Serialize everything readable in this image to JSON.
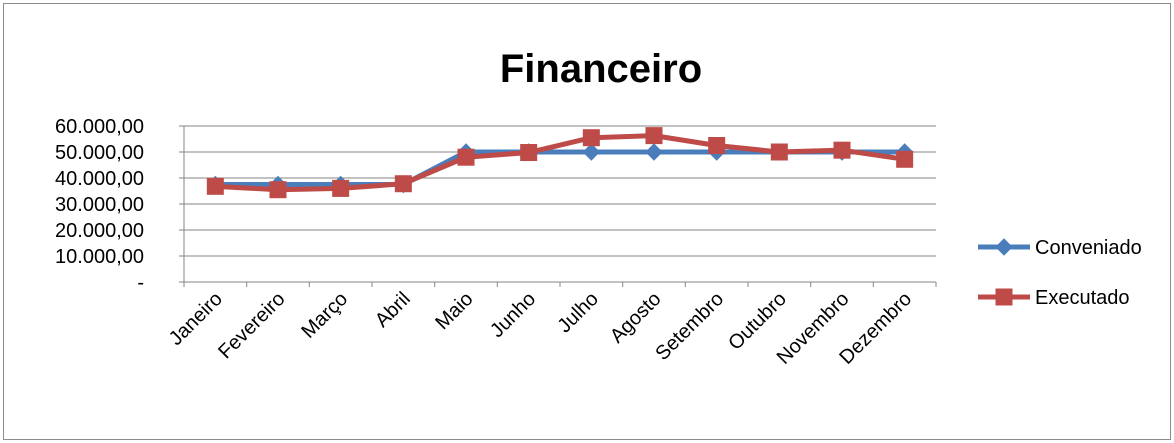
{
  "chart_data": {
    "type": "line",
    "title": "Financeiro",
    "xlabel": "",
    "ylabel": "",
    "categories": [
      "Janeiro",
      "Fevereiro",
      "Março",
      "Abril",
      "Maio",
      "Junho",
      "Julho",
      "Agosto",
      "Setembro",
      "Outubro",
      "Novembro",
      "Dezembro"
    ],
    "ylim": [
      0,
      60000
    ],
    "y_ticks": [
      0,
      10000,
      20000,
      30000,
      40000,
      50000,
      60000
    ],
    "y_tick_labels": [
      "-",
      "10.000,00",
      "20.000,00",
      "30.000,00",
      "40.000,00",
      "50.000,00",
      "60.000,00"
    ],
    "grid": true,
    "legend_position": "right",
    "series": [
      {
        "name": "Conveniado",
        "color": "#4a7ebb",
        "marker": "diamond",
        "values": [
          37500,
          37500,
          37500,
          37500,
          50000,
          50000,
          50000,
          50000,
          50000,
          50000,
          50000,
          50000
        ]
      },
      {
        "name": "Executado",
        "color": "#be4b48",
        "marker": "square",
        "values": [
          36800,
          35500,
          36000,
          37800,
          48000,
          49800,
          55500,
          56300,
          52500,
          50000,
          50700,
          47200
        ]
      }
    ]
  }
}
